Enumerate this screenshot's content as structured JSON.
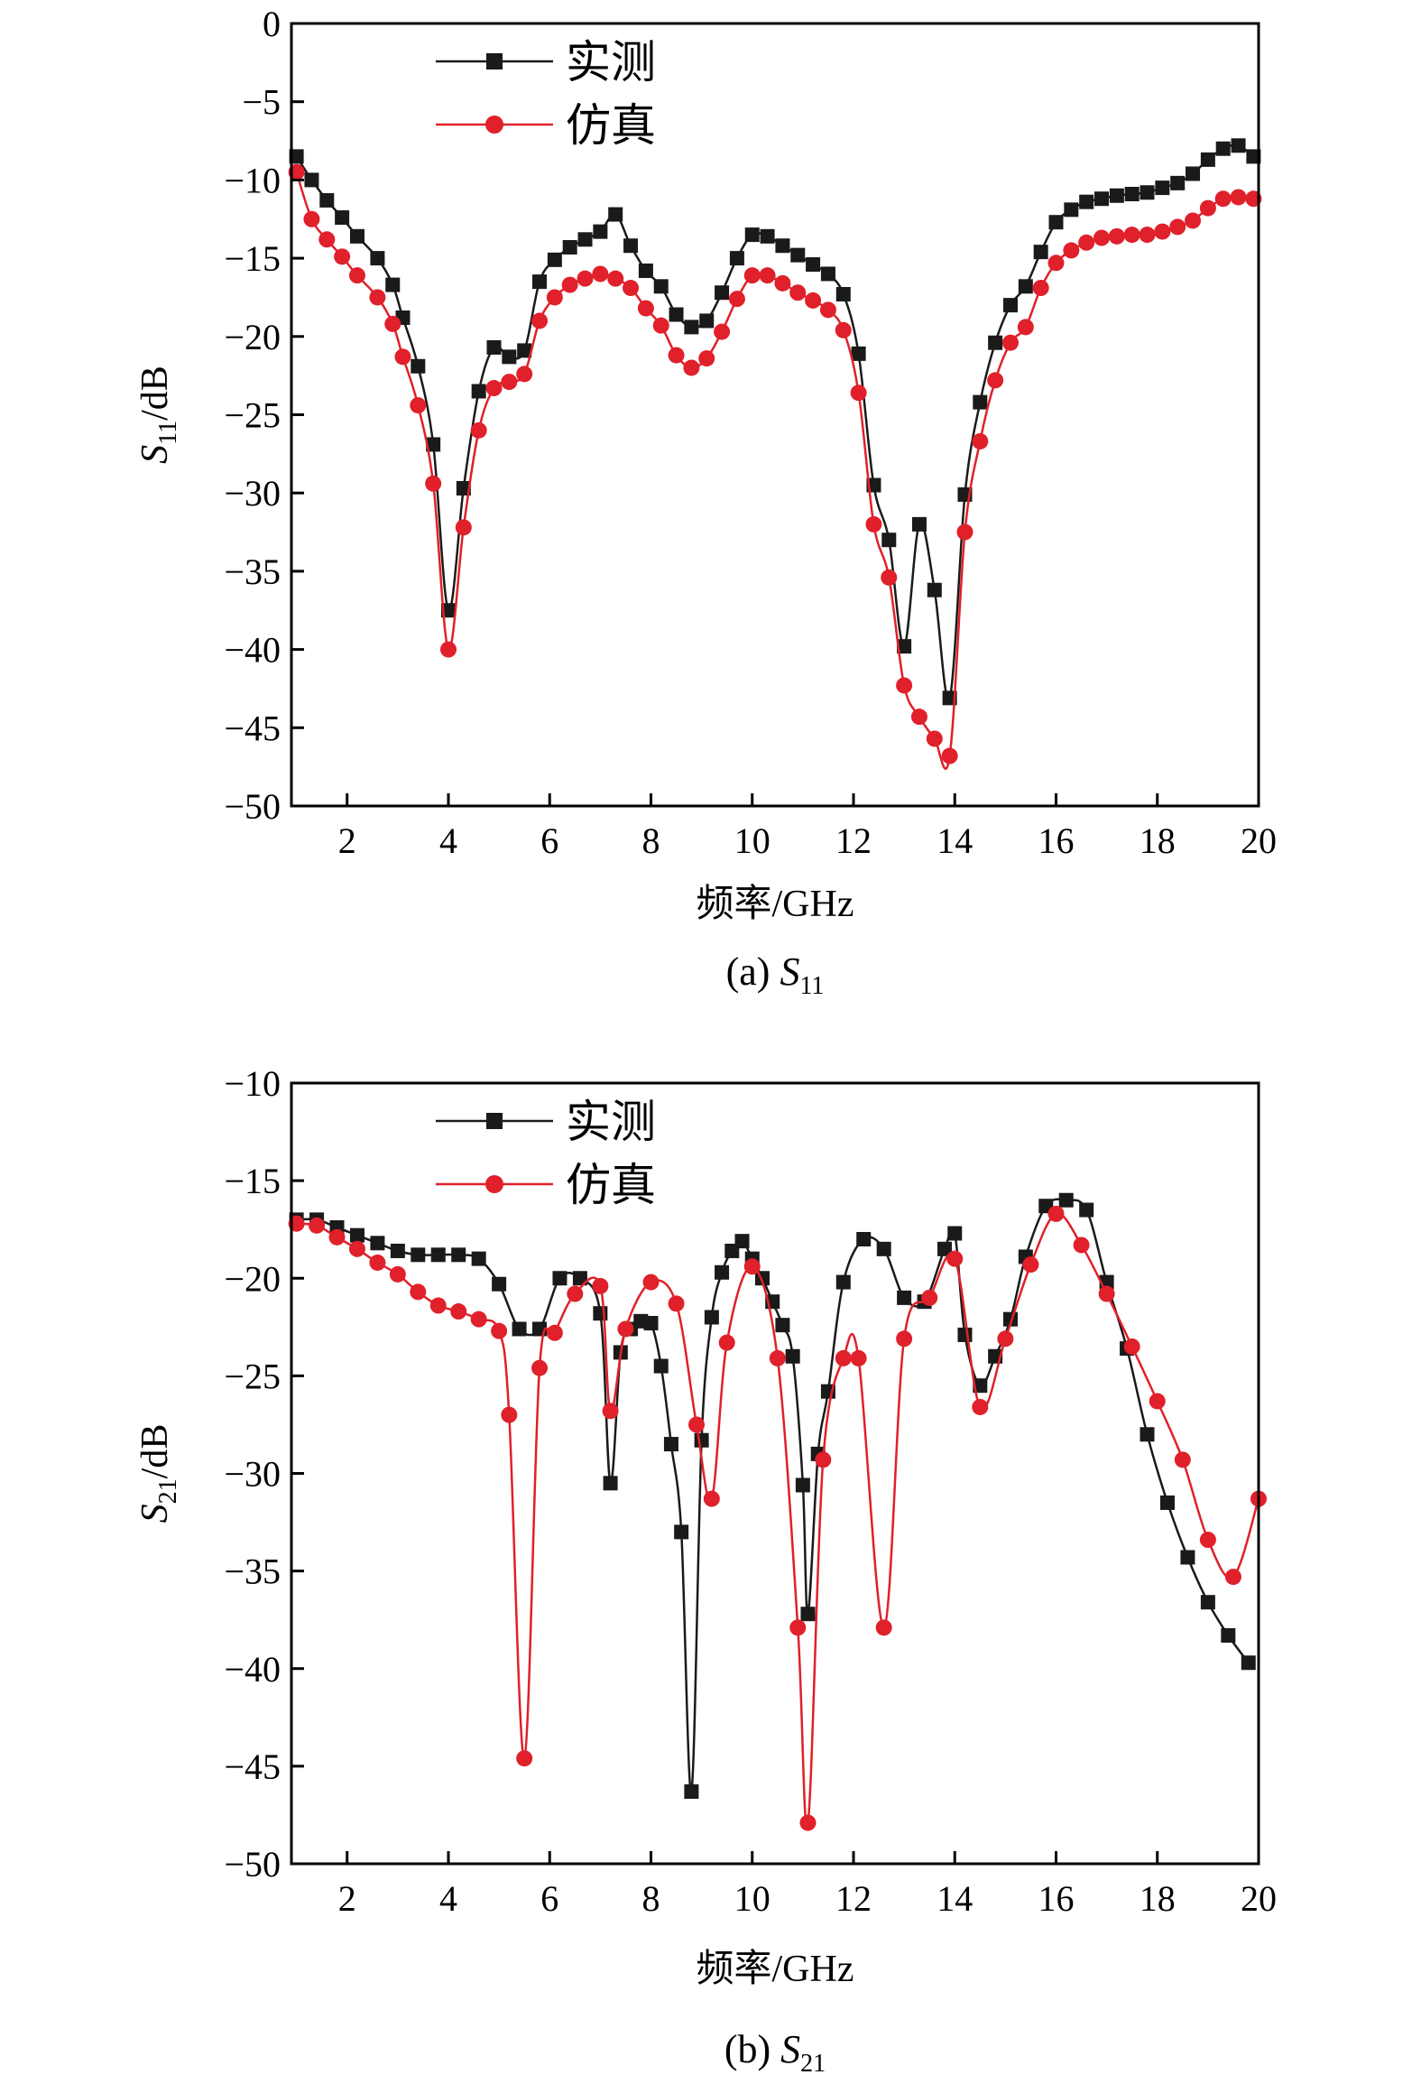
{
  "chart_data": [
    {
      "type": "line",
      "caption_prefix": "(a) ",
      "caption_symbol": "S",
      "caption_sub": "11",
      "ylabel_symbol": "S",
      "ylabel_sub": "11",
      "ylabel_unit": "/dB",
      "xlabel": "频率/GHz",
      "xlim": [
        0.9,
        20
      ],
      "ylim": [
        -50,
        0
      ],
      "xticks": [
        "2",
        "4",
        "6",
        "8",
        "10",
        "12",
        "14",
        "16",
        "18",
        "20"
      ],
      "yticks": [
        "0",
        "−5",
        "−10",
        "−15",
        "−20",
        "−25",
        "−30",
        "−35",
        "−40",
        "−45",
        "−50"
      ],
      "legend_position": "top-left",
      "series": [
        {
          "name": "实测",
          "color": "#1a1a1a",
          "marker": "square",
          "x": [
            1.0,
            1.3,
            1.6,
            1.9,
            2.2,
            2.6,
            2.9,
            3.1,
            3.4,
            3.7,
            4.0,
            4.3,
            4.6,
            4.9,
            5.2,
            5.5,
            5.8,
            6.1,
            6.4,
            6.7,
            7.0,
            7.3,
            7.6,
            7.9,
            8.2,
            8.5,
            8.8,
            9.1,
            9.4,
            9.7,
            10.0,
            10.3,
            10.6,
            10.9,
            11.2,
            11.5,
            11.8,
            12.1,
            12.4,
            12.7,
            13.0,
            13.3,
            13.6,
            13.9,
            14.2,
            14.5,
            14.8,
            15.1,
            15.4,
            15.7,
            16.0,
            16.3,
            16.6,
            16.9,
            17.2,
            17.5,
            17.8,
            18.1,
            18.4,
            18.7,
            19.0,
            19.3,
            19.6,
            19.9
          ],
          "y": [
            -8.5,
            -10,
            -11.3,
            -12.4,
            -13.6,
            -15.0,
            -16.7,
            -18.8,
            -21.9,
            -26.9,
            -37.5,
            -29.7,
            -23.5,
            -20.7,
            -21.3,
            -20.9,
            -16.5,
            -15.1,
            -14.3,
            -13.8,
            -13.3,
            -12.2,
            -14.2,
            -15.8,
            -16.8,
            -18.6,
            -19.4,
            -19.0,
            -17.2,
            -15.0,
            -13.5,
            -13.6,
            -14.2,
            -14.8,
            -15.4,
            -16.0,
            -17.3,
            -21.1,
            -29.5,
            -33.0,
            -39.8,
            -32.0,
            -36.2,
            -43.1,
            -30.1,
            -24.2,
            -20.4,
            -18.0,
            -16.8,
            -14.6,
            -12.7,
            -11.9,
            -11.4,
            -11.2,
            -11.0,
            -10.9,
            -10.8,
            -10.5,
            -10.2,
            -9.6,
            -8.7,
            -8.0,
            -7.8,
            -8.5
          ]
        },
        {
          "name": "仿真",
          "color": "#e0202a",
          "marker": "circle",
          "x": [
            1.0,
            1.3,
            1.6,
            1.9,
            2.2,
            2.6,
            2.9,
            3.1,
            3.4,
            3.7,
            4.0,
            4.3,
            4.6,
            4.9,
            5.2,
            5.5,
            5.8,
            6.1,
            6.4,
            6.7,
            7.0,
            7.3,
            7.6,
            7.9,
            8.2,
            8.5,
            8.8,
            9.1,
            9.4,
            9.7,
            10.0,
            10.3,
            10.6,
            10.9,
            11.2,
            11.5,
            11.8,
            12.1,
            12.4,
            12.7,
            13.0,
            13.3,
            13.6,
            13.9,
            14.2,
            14.5,
            14.8,
            15.1,
            15.4,
            15.7,
            16.0,
            16.3,
            16.6,
            16.9,
            17.2,
            17.5,
            17.8,
            18.1,
            18.4,
            18.7,
            19.0,
            19.3,
            19.6,
            19.9
          ],
          "y": [
            -9.5,
            -12.5,
            -13.8,
            -14.9,
            -16.1,
            -17.5,
            -19.2,
            -21.3,
            -24.4,
            -29.4,
            -40.0,
            -32.2,
            -26.0,
            -23.3,
            -22.9,
            -22.4,
            -19.0,
            -17.5,
            -16.7,
            -16.3,
            -16.0,
            -16.3,
            -16.9,
            -18.2,
            -19.3,
            -21.2,
            -22.0,
            -21.4,
            -19.7,
            -17.6,
            -16.1,
            -16.1,
            -16.6,
            -17.2,
            -17.7,
            -18.3,
            -19.6,
            -23.6,
            -32.0,
            -35.4,
            -42.3,
            -44.3,
            -45.7,
            -46.8,
            -32.5,
            -26.7,
            -22.8,
            -20.4,
            -19.4,
            -16.9,
            -15.3,
            -14.5,
            -14.0,
            -13.7,
            -13.6,
            -13.5,
            -13.5,
            -13.3,
            -13.0,
            -12.6,
            -11.8,
            -11.2,
            -11.1,
            -11.2
          ]
        }
      ]
    },
    {
      "type": "line",
      "caption_prefix": "(b) ",
      "caption_symbol": "S",
      "caption_sub": "21",
      "ylabel_symbol": "S",
      "ylabel_sub": "21",
      "ylabel_unit": "/dB",
      "xlabel": "频率/GHz",
      "xlim": [
        0.9,
        20
      ],
      "ylim": [
        -50,
        -10
      ],
      "xticks": [
        "2",
        "4",
        "6",
        "8",
        "10",
        "12",
        "14",
        "16",
        "18",
        "20"
      ],
      "yticks": [
        "−10",
        "−15",
        "−20",
        "−25",
        "−30",
        "−35",
        "−40",
        "−45",
        "−50"
      ],
      "legend_position": "top-left",
      "series": [
        {
          "name": "实测",
          "color": "#1a1a1a",
          "marker": "square",
          "x": [
            1.0,
            1.4,
            1.8,
            2.2,
            2.6,
            3.0,
            3.4,
            3.8,
            4.2,
            4.6,
            5.0,
            5.4,
            5.8,
            6.2,
            6.6,
            7.0,
            7.2,
            7.4,
            7.6,
            7.8,
            8.0,
            8.2,
            8.4,
            8.6,
            8.8,
            9.0,
            9.2,
            9.4,
            9.6,
            9.8,
            10.0,
            10.2,
            10.4,
            10.6,
            10.8,
            11.0,
            11.1,
            11.3,
            11.5,
            11.8,
            12.2,
            12.6,
            13.0,
            13.4,
            13.8,
            14.0,
            14.2,
            14.5,
            14.8,
            15.1,
            15.4,
            15.8,
            16.2,
            16.6,
            17.0,
            17.4,
            17.8,
            18.2,
            18.6,
            19.0,
            19.4,
            19.8
          ],
          "y": [
            -17.0,
            -17.0,
            -17.4,
            -17.8,
            -18.2,
            -18.6,
            -18.8,
            -18.8,
            -18.8,
            -19.0,
            -20.3,
            -22.6,
            -22.6,
            -20.0,
            -20.0,
            -21.8,
            -30.5,
            -23.8,
            -22.6,
            -22.2,
            -22.3,
            -24.5,
            -28.5,
            -33.0,
            -46.3,
            -28.3,
            -22.0,
            -19.7,
            -18.6,
            -18.1,
            -19.0,
            -20.0,
            -21.2,
            -22.4,
            -24.0,
            -30.6,
            -37.2,
            -29.0,
            -25.8,
            -20.2,
            -18.0,
            -18.5,
            -21.0,
            -21.2,
            -18.5,
            -17.7,
            -22.9,
            -25.5,
            -24.0,
            -22.1,
            -18.9,
            -16.3,
            -16.0,
            -16.5,
            -20.2,
            -23.6,
            -28.0,
            -31.5,
            -34.3,
            -36.6,
            -38.3,
            -39.7
          ]
        },
        {
          "name": "仿真",
          "color": "#e0202a",
          "marker": "circle",
          "x": [
            1.0,
            1.4,
            1.8,
            2.2,
            2.6,
            3.0,
            3.4,
            3.8,
            4.2,
            4.6,
            5.0,
            5.2,
            5.5,
            5.8,
            6.1,
            6.5,
            7.0,
            7.2,
            7.5,
            8.0,
            8.5,
            8.9,
            9.2,
            9.5,
            10.0,
            10.5,
            10.9,
            11.1,
            11.4,
            11.8,
            12.1,
            12.6,
            13.0,
            13.5,
            14.0,
            14.5,
            15.0,
            15.5,
            16.0,
            16.5,
            17.0,
            17.5,
            18.0,
            18.5,
            19.0,
            19.5,
            20.0
          ],
          "y": [
            -17.2,
            -17.3,
            -17.9,
            -18.5,
            -19.2,
            -19.8,
            -20.7,
            -21.4,
            -21.7,
            -22.1,
            -22.7,
            -27.0,
            -44.6,
            -24.6,
            -22.8,
            -20.8,
            -20.4,
            -26.8,
            -22.6,
            -20.2,
            -21.3,
            -27.5,
            -31.3,
            -23.3,
            -19.4,
            -24.1,
            -37.9,
            -47.9,
            -29.3,
            -24.1,
            -24.1,
            -37.9,
            -23.1,
            -21.0,
            -19.0,
            -26.6,
            -23.1,
            -19.3,
            -16.7,
            -18.3,
            -20.8,
            -23.5,
            -26.3,
            -29.3,
            -33.4,
            -35.3,
            -31.3
          ]
        }
      ]
    }
  ]
}
